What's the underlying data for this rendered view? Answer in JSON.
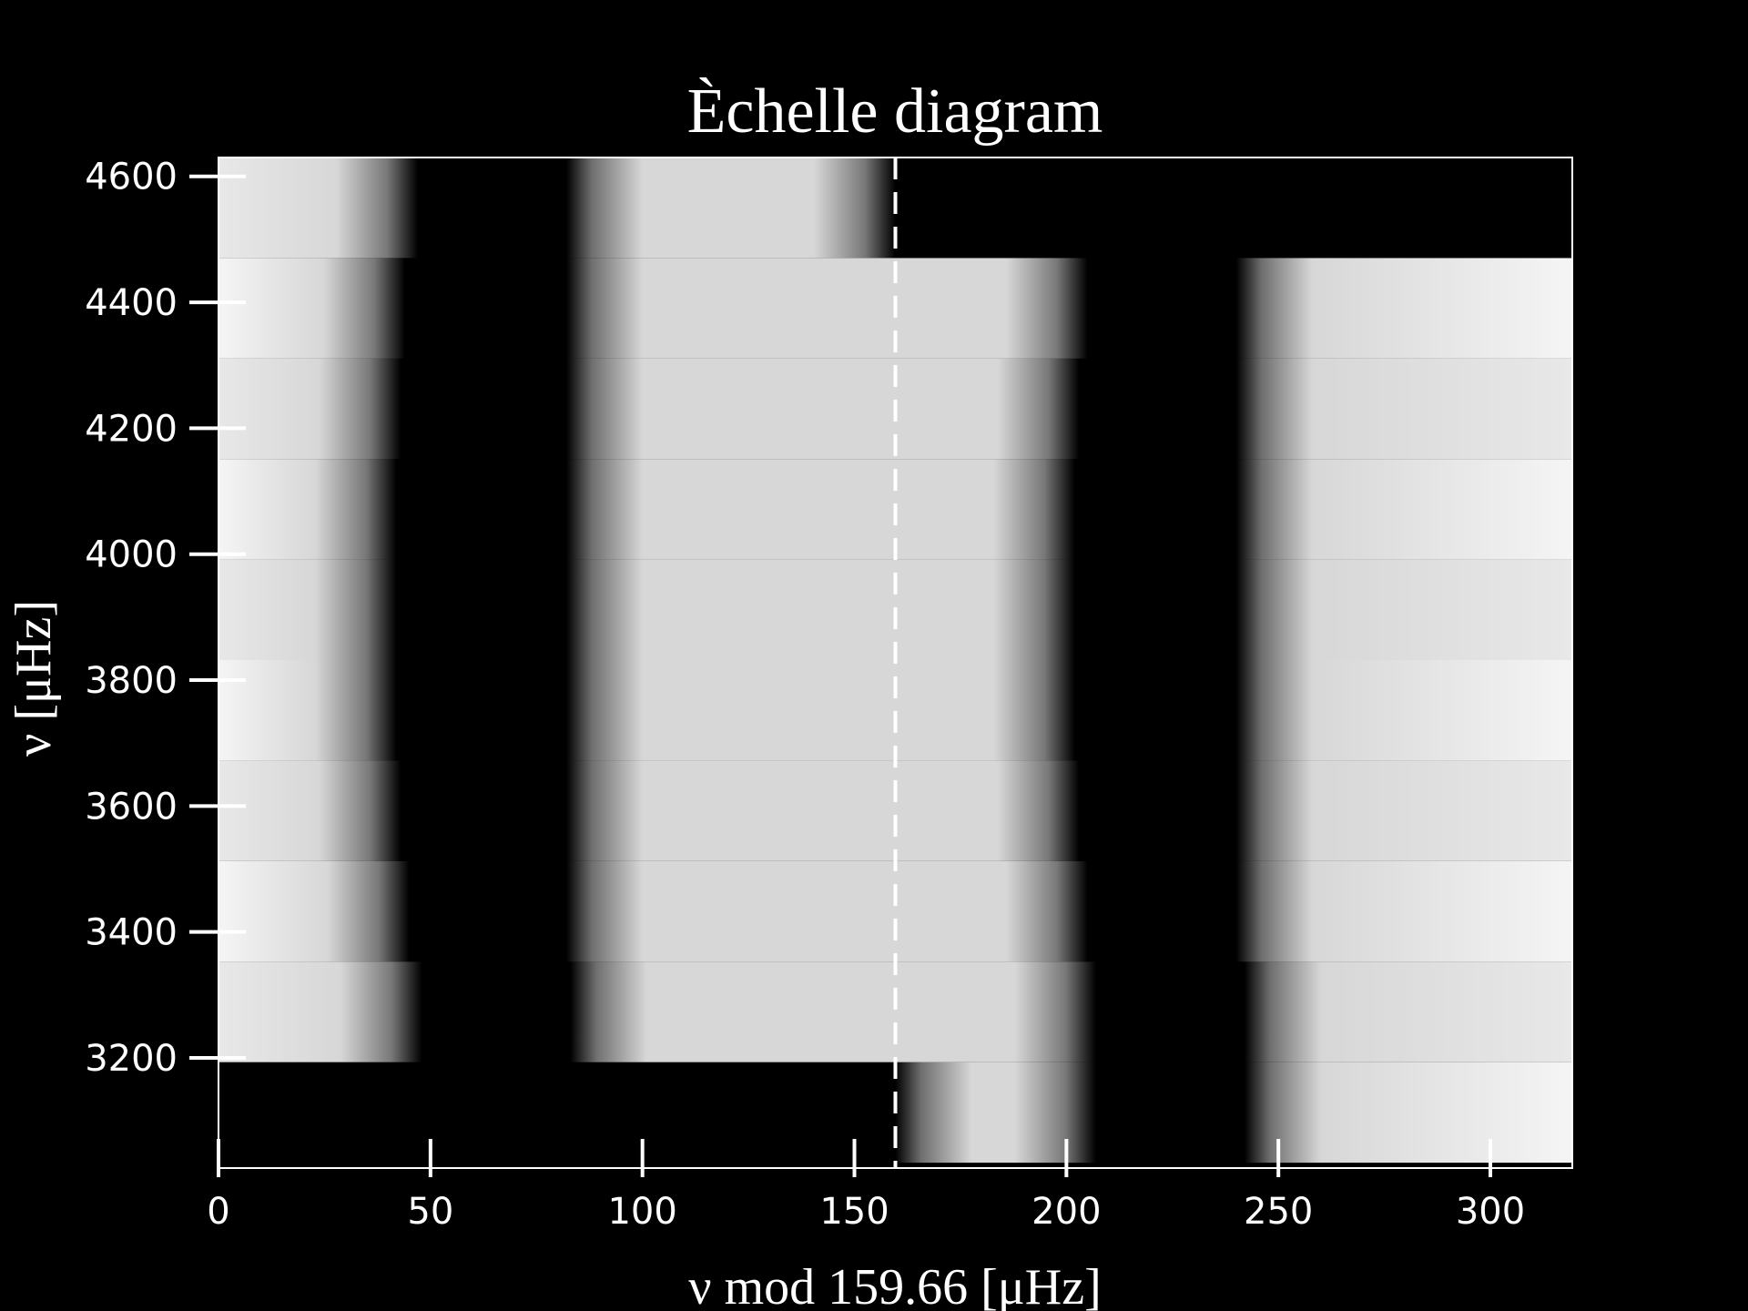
{
  "chart_data": {
    "type": "heatmap",
    "title": "Èchelle diagram",
    "xlabel": "ν mod 159.66 [μHz]",
    "ylabel": "ν [μHz]",
    "delta_nu": 159.66,
    "xlim": [
      0,
      319.32
    ],
    "ylim": [
      3025,
      4630
    ],
    "xticks": [
      0,
      50,
      100,
      150,
      200,
      250,
      300
    ],
    "yticks": [
      3200,
      3400,
      3600,
      3800,
      4000,
      4200,
      4400,
      4600
    ],
    "grid": false,
    "colormap": "grayscale (black = low power, white = high power)",
    "dashed_line_x": 159.66,
    "rows": [
      {
        "nu_start": 3033.5,
        "dark_bands": [
          [
            0,
            159.66
          ],
          [
            207,
            242
          ]
        ]
      },
      {
        "nu_start": 3193.2,
        "dark_bands": [
          [
            48,
            83
          ],
          [
            207,
            242
          ]
        ]
      },
      {
        "nu_start": 3352.8,
        "dark_bands": [
          [
            45,
            82
          ],
          [
            205,
            240
          ]
        ]
      },
      {
        "nu_start": 3512.5,
        "dark_bands": [
          [
            43,
            82
          ],
          [
            203,
            240
          ]
        ]
      },
      {
        "nu_start": 3672.2,
        "dark_bands": [
          [
            42,
            82
          ],
          [
            202,
            240
          ]
        ]
      },
      {
        "nu_start": 3831.8,
        "dark_bands": [
          [
            42,
            82
          ],
          [
            202,
            240
          ]
        ]
      },
      {
        "nu_start": 3991.5,
        "dark_bands": [
          [
            42,
            82
          ],
          [
            202,
            240
          ]
        ]
      },
      {
        "nu_start": 4151.2,
        "dark_bands": [
          [
            43,
            82
          ],
          [
            203,
            240
          ]
        ]
      },
      {
        "nu_start": 4310.8,
        "dark_bands": [
          [
            44,
            82
          ],
          [
            205,
            240
          ]
        ]
      },
      {
        "nu_start": 4470.5,
        "dark_bands": [
          [
            47,
            82
          ],
          [
            159.66,
            319.32
          ]
        ]
      }
    ]
  },
  "colors": {
    "background": "#000000",
    "foreground": "#ffffff"
  }
}
